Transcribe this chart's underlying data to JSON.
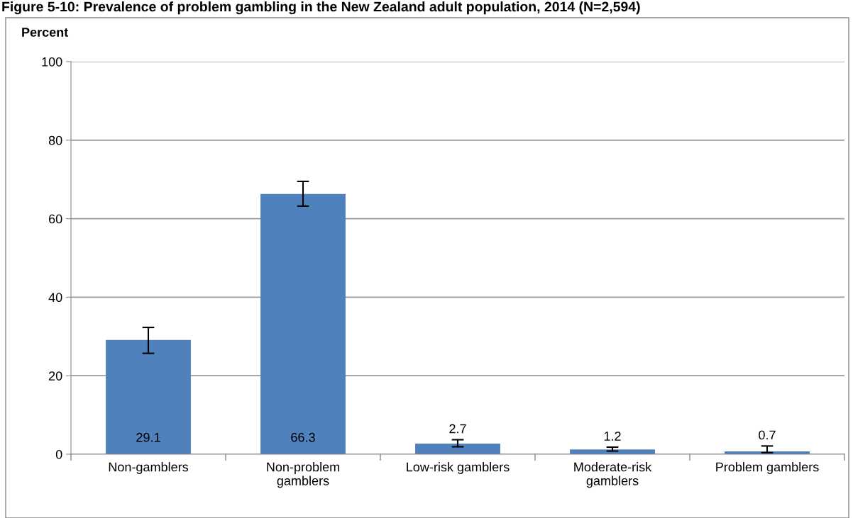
{
  "chart_data": {
    "type": "bar",
    "title": "Figure 5-10: Prevalence of problem gambling in the New Zealand adult population, 2014 (N=2,594)",
    "ylabel": "Percent",
    "categories": [
      "Non-gamblers",
      "Non-problem\ngamblers",
      "Low-risk gamblers",
      "Moderate-risk\ngamblers",
      "Problem gamblers"
    ],
    "values": [
      29.1,
      66.3,
      2.7,
      1.2,
      0.7
    ],
    "errors": [
      [
        25.7,
        32.3
      ],
      [
        63.2,
        69.5
      ],
      [
        1.9,
        3.7
      ],
      [
        0.8,
        1.8
      ],
      [
        0.4,
        2.1
      ]
    ],
    "color": "#4f81bd",
    "ylim": [
      0,
      100
    ],
    "yticks": [
      0,
      20,
      40,
      60,
      80,
      100
    ],
    "grid": "y",
    "data_labels": true
  }
}
